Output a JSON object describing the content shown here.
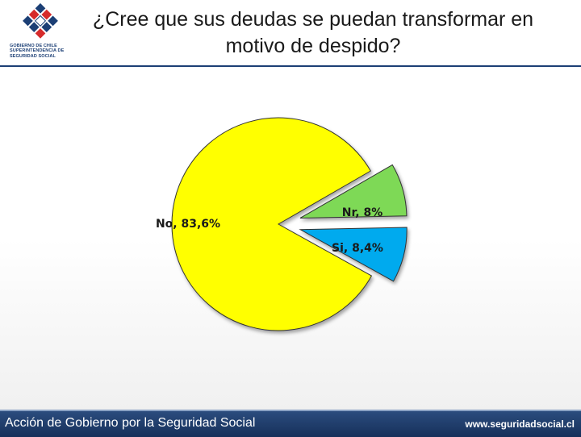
{
  "header": {
    "title_line1": "¿Cree que sus deudas se puedan transformar en",
    "title_line2": "motivo de despido?",
    "logo": {
      "icon": "chilean-government-emblem",
      "line1": "GOBIERNO DE CHILE",
      "line2": "SUPERINTENDENCIA DE",
      "line3": "SEGURIDAD SOCIAL"
    }
  },
  "chart_data": {
    "type": "pie",
    "title": "",
    "slices": [
      {
        "name": "No",
        "value": 83.6,
        "label": "No, 83,6%",
        "color": "#ffff00",
        "exploded": false
      },
      {
        "name": "Nr",
        "value": 8.0,
        "label": "Nr, 8%",
        "color": "#7ed957",
        "exploded": true
      },
      {
        "name": "Si",
        "value": 8.4,
        "label": "Si, 8,4%",
        "color": "#00aaee",
        "exploded": true
      }
    ],
    "legend": "none",
    "data_labels": true
  },
  "footer": {
    "left_text": "Acción de Gobierno por la Seguridad Social",
    "right_text": "www.seguridadsocial.cl"
  },
  "colors": {
    "navy": "#1c3f75",
    "footer_bg": "#1f3d6b"
  }
}
